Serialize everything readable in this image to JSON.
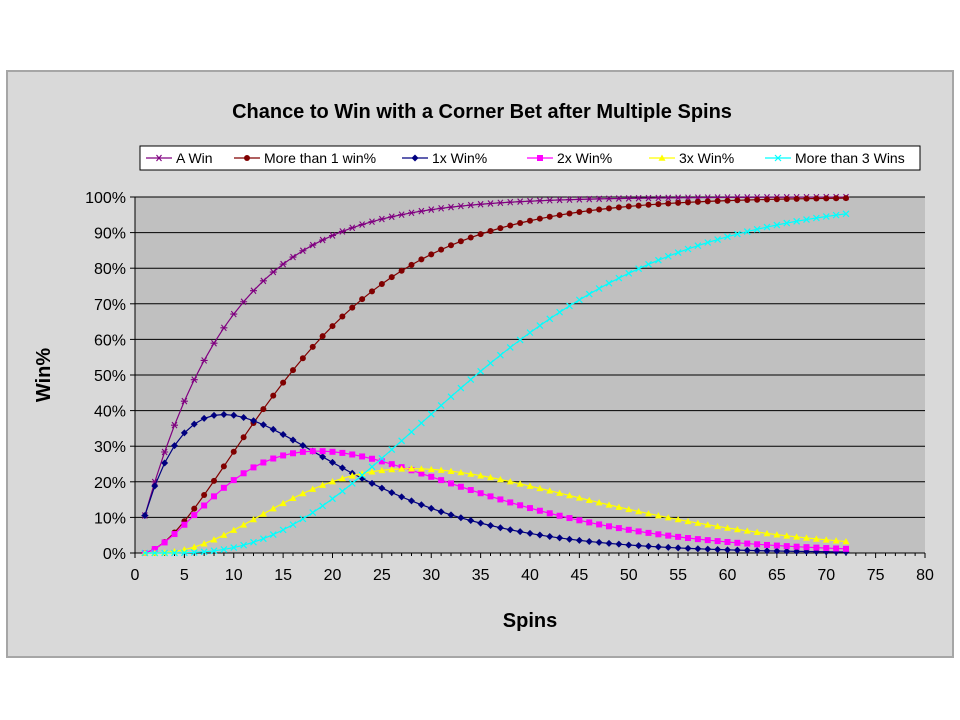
{
  "chart_data": {
    "type": "line",
    "title": "Chance to Win with a Corner Bet after Multiple Spins",
    "xlabel": "Spins",
    "ylabel": "Win%",
    "xlim": [
      0,
      80
    ],
    "ylim": [
      0,
      1
    ],
    "x_ticks": [
      "0",
      "5",
      "10",
      "15",
      "20",
      "25",
      "30",
      "35",
      "40",
      "45",
      "50",
      "55",
      "60",
      "65",
      "70",
      "75",
      "80"
    ],
    "y_ticks": [
      "0%",
      "10%",
      "20%",
      "30%",
      "40%",
      "50%",
      "60%",
      "70%",
      "80%",
      "90%",
      "100%"
    ],
    "grid": "horizontal",
    "legend_position": "top",
    "x_range": [
      1,
      72
    ],
    "bet_probability": 0.10526,
    "series": [
      {
        "name": "A Win",
        "kind": "atleast1",
        "color": "#800080",
        "marker": "star"
      },
      {
        "name": "More than 1 win%",
        "kind": "atleast2",
        "color": "#800000",
        "marker": "circle"
      },
      {
        "name": "1x Win%",
        "kind": "exact1",
        "color": "#000080",
        "marker": "diamond"
      },
      {
        "name": "2x Win%",
        "kind": "exact2",
        "color": "#ff00ff",
        "marker": "square"
      },
      {
        "name": "3x Win%",
        "kind": "exact3",
        "color": "#ffff00",
        "marker": "triangle"
      },
      {
        "name": "More than 3 Wins",
        "kind": "atleast4",
        "color": "#00ffff",
        "marker": "x"
      }
    ],
    "colors": {
      "plot_background": "#c0c0c0",
      "chart_background": "#d9d9d9",
      "border": "#a6a6a6"
    }
  }
}
